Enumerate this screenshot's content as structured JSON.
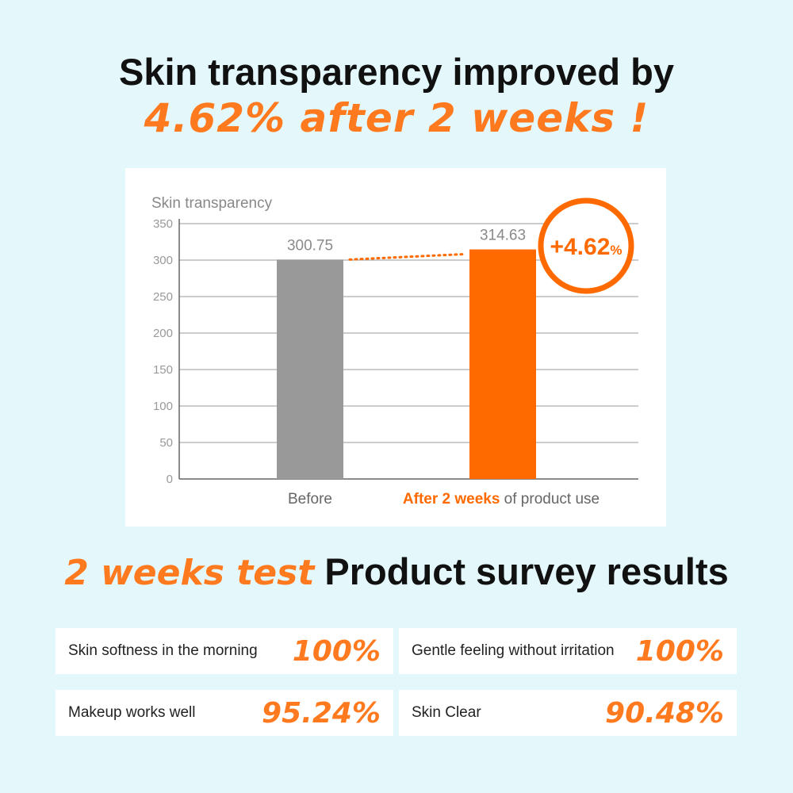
{
  "headline": {
    "line1": "Skin transparency improved by",
    "line2": "4.62% after 2 weeks !"
  },
  "chart_data": {
    "type": "bar",
    "ylabel": "Skin transparency",
    "ylim": [
      0,
      350
    ],
    "yticks": [
      0,
      50,
      100,
      150,
      200,
      250,
      300,
      350
    ],
    "categories": [
      "Before",
      "After 2 weeks of product use"
    ],
    "category_highlight": "After 2 weeks",
    "category_suffix": " of product use",
    "values": [
      300.75,
      314.63
    ],
    "value_labels": [
      "300.75",
      "314.63"
    ],
    "bar_colors": [
      "#999999",
      "#ff6a00"
    ],
    "badge": {
      "value": "+4.62",
      "unit": "%"
    },
    "grid": true,
    "accent": "#ff6a00"
  },
  "survey": {
    "title_emphasis": "2 weeks test",
    "title_rest": "Product survey results",
    "items": [
      {
        "label": "Skin softness in the morning",
        "value": "100%"
      },
      {
        "label": "Gentle feeling without irritation",
        "value": "100%"
      },
      {
        "label": "Makeup works well",
        "value": "95.24%"
      },
      {
        "label": "Skin Clear",
        "value": "90.48%"
      }
    ]
  }
}
